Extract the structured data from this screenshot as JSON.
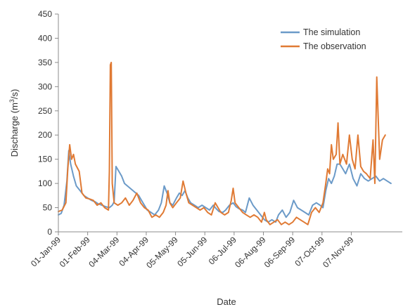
{
  "chart_data": {
    "type": "line",
    "title": "",
    "xlabel": "Date",
    "ylabel_text": "Discharge  (m",
    "ylabel_sup": "3",
    "ylabel_tail": "/s)",
    "ylim": [
      0,
      450
    ],
    "yticks": [
      0,
      50,
      100,
      150,
      200,
      250,
      300,
      350,
      400,
      450
    ],
    "xlim": [
      "1999-01-01",
      "1999-12-31"
    ],
    "xticks": [
      {
        "date": "1999-01-01",
        "label": "01-Jan-99"
      },
      {
        "date": "1999-02-01",
        "label": "01-Feb-99"
      },
      {
        "date": "1999-03-04",
        "label": "04-Mar-99"
      },
      {
        "date": "1999-04-04",
        "label": "04-Apr-99"
      },
      {
        "date": "1999-05-05",
        "label": "05-May-99"
      },
      {
        "date": "1999-06-05",
        "label": "05-Jun-99"
      },
      {
        "date": "1999-07-06",
        "label": "06-Jul-99"
      },
      {
        "date": "1999-08-06",
        "label": "06-Aug-99"
      },
      {
        "date": "1999-09-06",
        "label": "06-Sep-99"
      },
      {
        "date": "1999-10-07",
        "label": "07-Oct-99"
      },
      {
        "date": "1999-11-07",
        "label": "07-Nov-99"
      }
    ],
    "legend_position": "top-right",
    "grid": false,
    "series": [
      {
        "name": "The simulation",
        "color": "#6b9ac8",
        "points": [
          [
            "1999-01-01",
            35
          ],
          [
            "1999-01-04",
            38
          ],
          [
            "1999-01-07",
            55
          ],
          [
            "1999-01-10",
            105
          ],
          [
            "1999-01-12",
            168
          ],
          [
            "1999-01-14",
            140
          ],
          [
            "1999-01-17",
            115
          ],
          [
            "1999-01-20",
            95
          ],
          [
            "1999-01-24",
            85
          ],
          [
            "1999-01-28",
            75
          ],
          [
            "1999-02-01",
            70
          ],
          [
            "1999-02-05",
            65
          ],
          [
            "1999-02-09",
            62
          ],
          [
            "1999-02-12",
            58
          ],
          [
            "1999-02-16",
            55
          ],
          [
            "1999-02-20",
            52
          ],
          [
            "1999-02-24",
            50
          ],
          [
            "1999-02-27",
            55
          ],
          [
            "1999-03-01",
            62
          ],
          [
            "1999-03-03",
            135
          ],
          [
            "1999-03-06",
            125
          ],
          [
            "1999-03-09",
            115
          ],
          [
            "1999-03-12",
            100
          ],
          [
            "1999-03-15",
            95
          ],
          [
            "1999-03-18",
            90
          ],
          [
            "1999-03-21",
            85
          ],
          [
            "1999-03-24",
            80
          ],
          [
            "1999-03-27",
            75
          ],
          [
            "1999-03-30",
            65
          ],
          [
            "1999-04-02",
            55
          ],
          [
            "1999-04-05",
            45
          ],
          [
            "1999-04-09",
            40
          ],
          [
            "1999-04-13",
            35
          ],
          [
            "1999-04-17",
            45
          ],
          [
            "1999-04-20",
            60
          ],
          [
            "1999-04-23",
            95
          ],
          [
            "1999-04-26",
            80
          ],
          [
            "1999-04-29",
            60
          ],
          [
            "1999-05-02",
            55
          ],
          [
            "1999-05-06",
            70
          ],
          [
            "1999-05-09",
            80
          ],
          [
            "1999-05-12",
            75
          ],
          [
            "1999-05-15",
            85
          ],
          [
            "1999-05-18",
            70
          ],
          [
            "1999-05-21",
            60
          ],
          [
            "1999-05-25",
            55
          ],
          [
            "1999-05-29",
            50
          ],
          [
            "1999-06-02",
            55
          ],
          [
            "1999-06-06",
            50
          ],
          [
            "1999-06-10",
            45
          ],
          [
            "1999-06-14",
            55
          ],
          [
            "1999-06-17",
            48
          ],
          [
            "1999-06-20",
            42
          ],
          [
            "1999-06-24",
            40
          ],
          [
            "1999-06-27",
            45
          ],
          [
            "1999-07-01",
            55
          ],
          [
            "1999-07-05",
            60
          ],
          [
            "1999-07-08",
            52
          ],
          [
            "1999-07-11",
            48
          ],
          [
            "1999-07-15",
            45
          ],
          [
            "1999-07-18",
            40
          ],
          [
            "1999-07-22",
            70
          ],
          [
            "1999-07-26",
            55
          ],
          [
            "1999-07-30",
            45
          ],
          [
            "1999-08-03",
            35
          ],
          [
            "1999-08-07",
            25
          ],
          [
            "1999-08-11",
            20
          ],
          [
            "1999-08-15",
            25
          ],
          [
            "1999-08-19",
            20
          ],
          [
            "1999-08-22",
            35
          ],
          [
            "1999-08-26",
            45
          ],
          [
            "1999-08-30",
            30
          ],
          [
            "1999-09-03",
            40
          ],
          [
            "1999-09-07",
            65
          ],
          [
            "1999-09-11",
            50
          ],
          [
            "1999-09-15",
            45
          ],
          [
            "1999-09-19",
            40
          ],
          [
            "1999-09-23",
            35
          ],
          [
            "1999-09-27",
            55
          ],
          [
            "1999-10-01",
            60
          ],
          [
            "1999-10-05",
            55
          ],
          [
            "1999-10-08",
            50
          ],
          [
            "1999-10-11",
            85
          ],
          [
            "1999-10-14",
            110
          ],
          [
            "1999-10-17",
            100
          ],
          [
            "1999-10-20",
            115
          ],
          [
            "1999-10-23",
            140
          ],
          [
            "1999-10-26",
            140
          ],
          [
            "1999-10-29",
            130
          ],
          [
            "1999-11-01",
            120
          ],
          [
            "1999-11-05",
            140
          ],
          [
            "1999-11-09",
            110
          ],
          [
            "1999-11-13",
            95
          ],
          [
            "1999-11-17",
            120
          ],
          [
            "1999-11-21",
            110
          ],
          [
            "1999-11-25",
            105
          ],
          [
            "1999-11-29",
            110
          ],
          [
            "1999-12-03",
            115
          ],
          [
            "1999-12-07",
            105
          ],
          [
            "1999-12-11",
            110
          ],
          [
            "1999-12-15",
            105
          ],
          [
            "1999-12-19",
            100
          ]
        ]
      },
      {
        "name": "The observation",
        "color": "#e07a34",
        "points": [
          [
            "1999-01-01",
            42
          ],
          [
            "1999-01-05",
            45
          ],
          [
            "1999-01-09",
            60
          ],
          [
            "1999-01-11",
            130
          ],
          [
            "1999-01-13",
            180
          ],
          [
            "1999-01-15",
            150
          ],
          [
            "1999-01-17",
            160
          ],
          [
            "1999-01-19",
            140
          ],
          [
            "1999-01-23",
            125
          ],
          [
            "1999-01-26",
            80
          ],
          [
            "1999-01-30",
            70
          ],
          [
            "1999-02-03",
            68
          ],
          [
            "1999-02-07",
            65
          ],
          [
            "1999-02-11",
            55
          ],
          [
            "1999-02-15",
            60
          ],
          [
            "1999-02-19",
            50
          ],
          [
            "1999-02-23",
            45
          ],
          [
            "1999-02-24",
            125
          ],
          [
            "1999-02-25",
            345
          ],
          [
            "1999-02-26",
            350
          ],
          [
            "1999-02-27",
            100
          ],
          [
            "1999-03-01",
            60
          ],
          [
            "1999-03-05",
            55
          ],
          [
            "1999-03-09",
            60
          ],
          [
            "1999-03-13",
            70
          ],
          [
            "1999-03-17",
            55
          ],
          [
            "1999-03-21",
            65
          ],
          [
            "1999-03-25",
            80
          ],
          [
            "1999-03-29",
            60
          ],
          [
            "1999-04-02",
            50
          ],
          [
            "1999-04-06",
            45
          ],
          [
            "1999-04-10",
            30
          ],
          [
            "1999-04-14",
            35
          ],
          [
            "1999-04-18",
            30
          ],
          [
            "1999-04-22",
            40
          ],
          [
            "1999-04-25",
            55
          ],
          [
            "1999-04-27",
            85
          ],
          [
            "1999-04-29",
            60
          ],
          [
            "1999-05-02",
            50
          ],
          [
            "1999-05-06",
            60
          ],
          [
            "1999-05-10",
            70
          ],
          [
            "1999-05-13",
            105
          ],
          [
            "1999-05-16",
            80
          ],
          [
            "1999-05-19",
            60
          ],
          [
            "1999-05-23",
            55
          ],
          [
            "1999-05-27",
            50
          ],
          [
            "1999-05-31",
            45
          ],
          [
            "1999-06-04",
            50
          ],
          [
            "1999-06-08",
            40
          ],
          [
            "1999-06-12",
            35
          ],
          [
            "1999-06-16",
            60
          ],
          [
            "1999-06-19",
            50
          ],
          [
            "1999-06-22",
            40
          ],
          [
            "1999-06-26",
            35
          ],
          [
            "1999-06-30",
            40
          ],
          [
            "1999-07-03",
            65
          ],
          [
            "1999-07-05",
            90
          ],
          [
            "1999-07-07",
            60
          ],
          [
            "1999-07-11",
            50
          ],
          [
            "1999-07-15",
            40
          ],
          [
            "1999-07-19",
            35
          ],
          [
            "1999-07-23",
            30
          ],
          [
            "1999-07-27",
            35
          ],
          [
            "1999-07-31",
            30
          ],
          [
            "1999-08-04",
            20
          ],
          [
            "1999-08-07",
            40
          ],
          [
            "1999-08-09",
            25
          ],
          [
            "1999-08-13",
            15
          ],
          [
            "1999-08-17",
            20
          ],
          [
            "1999-08-21",
            25
          ],
          [
            "1999-08-25",
            15
          ],
          [
            "1999-08-29",
            20
          ],
          [
            "1999-09-02",
            15
          ],
          [
            "1999-09-06",
            20
          ],
          [
            "1999-09-10",
            30
          ],
          [
            "1999-09-14",
            25
          ],
          [
            "1999-09-18",
            20
          ],
          [
            "1999-09-22",
            15
          ],
          [
            "1999-09-26",
            40
          ],
          [
            "1999-09-30",
            50
          ],
          [
            "1999-10-04",
            40
          ],
          [
            "1999-10-08",
            60
          ],
          [
            "1999-10-11",
            100
          ],
          [
            "1999-10-13",
            130
          ],
          [
            "1999-10-15",
            120
          ],
          [
            "1999-10-17",
            180
          ],
          [
            "1999-10-19",
            150
          ],
          [
            "1999-10-22",
            160
          ],
          [
            "1999-10-24",
            225
          ],
          [
            "1999-10-26",
            140
          ],
          [
            "1999-10-29",
            160
          ],
          [
            "1999-11-02",
            140
          ],
          [
            "1999-11-05",
            200
          ],
          [
            "1999-11-08",
            150
          ],
          [
            "1999-11-11",
            130
          ],
          [
            "1999-11-14",
            200
          ],
          [
            "1999-11-17",
            135
          ],
          [
            "1999-11-20",
            125
          ],
          [
            "1999-11-23",
            120
          ],
          [
            "1999-11-27",
            110
          ],
          [
            "1999-11-30",
            190
          ],
          [
            "1999-12-02",
            100
          ],
          [
            "1999-12-04",
            320
          ],
          [
            "1999-12-07",
            150
          ],
          [
            "1999-12-10",
            190
          ],
          [
            "1999-12-13",
            200
          ]
        ]
      }
    ]
  }
}
